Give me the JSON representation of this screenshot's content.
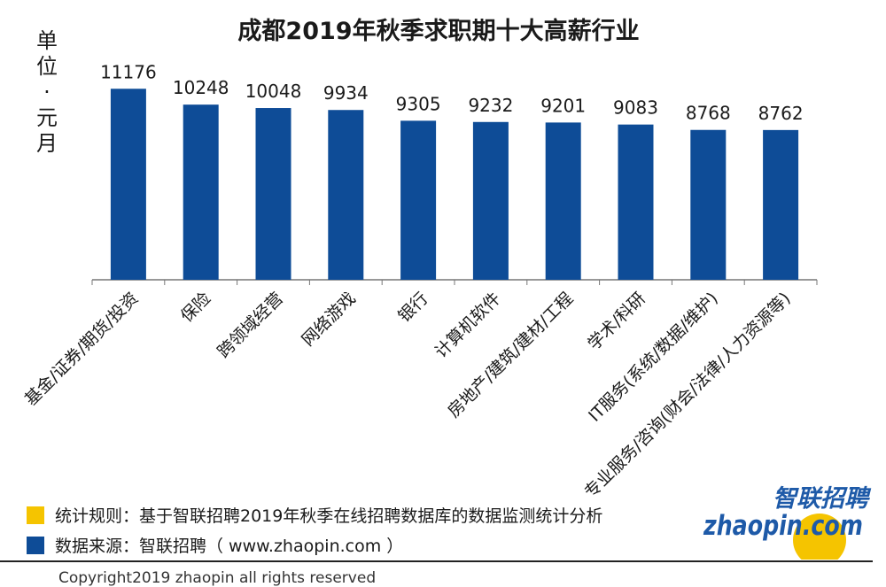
{
  "chart_data": {
    "type": "bar",
    "title": "成都2019年秋季求职期十大高薪行业",
    "ylabel": "单位：元/月",
    "categories": [
      "基金/证券/期货/投资",
      "保险",
      "跨领域经营",
      "网络游戏",
      "银行",
      "计算机软件",
      "房地产/建筑/建材/工程",
      "学术/科研",
      "IT服务(系统/数据/维护)",
      "专业服务/咨询(财会/法律/人力资源等)"
    ],
    "values": [
      11176,
      10248,
      10048,
      9934,
      9305,
      9232,
      9201,
      9083,
      8768,
      8762
    ],
    "ylim": [
      0,
      11500
    ],
    "bar_color": "#0e4c97",
    "grid": false
  },
  "yunit_chars": [
    "单",
    "位",
    "·",
    "元",
    "月"
  ],
  "footer": {
    "rule_text": "统计规则：基于智联招聘2019年秋季在线招聘数据库的数据监测统计分析",
    "rule_color": "#f5c400",
    "source_text": "数据来源：智联招聘（ www.zhaopin.com ）",
    "source_color": "#0e4c97",
    "copyright": "Copyright2019 zhaopin all rights reserved"
  },
  "logo": {
    "cn": "智联招聘",
    "en": "zhaopin.com",
    "blue": "#1e5aa8",
    "yellow": "#f5c400"
  }
}
